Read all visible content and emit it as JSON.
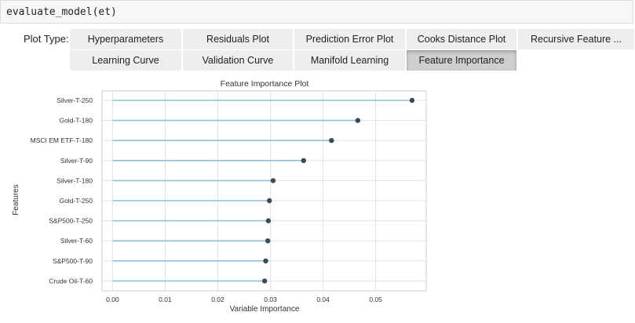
{
  "code_cell": {
    "code": "evaluate_model(et)"
  },
  "plot_type": {
    "label": "Plot Type:",
    "buttons": [
      {
        "label": "Hyperparameters",
        "active": false
      },
      {
        "label": "Residuals Plot",
        "active": false
      },
      {
        "label": "Prediction Error Plot",
        "active": false
      },
      {
        "label": "Cooks Distance Plot",
        "active": false
      },
      {
        "label": "Recursive Feature ...",
        "active": false
      },
      {
        "label": "Learning Curve",
        "active": false
      },
      {
        "label": "Validation Curve",
        "active": false
      },
      {
        "label": "Manifold Learning",
        "active": false
      },
      {
        "label": "Feature Importance",
        "active": true
      }
    ]
  },
  "colors": {
    "stem": "#8fc1d8",
    "dot": "#3b4a57",
    "grid": "#e3e3e3",
    "active_button": "#cfcfcf"
  },
  "chart_data": {
    "type": "lollipop",
    "title": "Feature Importance Plot",
    "xlabel": "Variable Importance",
    "ylabel": "Features",
    "xlim": [
      -0.002,
      0.0596
    ],
    "xticks": [
      0.0,
      0.01,
      0.02,
      0.03,
      0.04,
      0.05
    ],
    "xtick_labels": [
      "0.00",
      "0.01",
      "0.02",
      "0.03",
      "0.04",
      "0.05"
    ],
    "grid": true,
    "categories": [
      "Silver-T-250",
      "Gold-T-180",
      "MSCI EM ETF-T-180",
      "Silver-T-90",
      "Silver-T-180",
      "Gold-T-250",
      "S&P500-T-250",
      "Silver-T-60",
      "S&P500-T-90",
      "Crude Oil-T-60"
    ],
    "values": [
      0.0569,
      0.0466,
      0.0416,
      0.0363,
      0.0305,
      0.0298,
      0.0296,
      0.0295,
      0.0291,
      0.0289
    ]
  }
}
